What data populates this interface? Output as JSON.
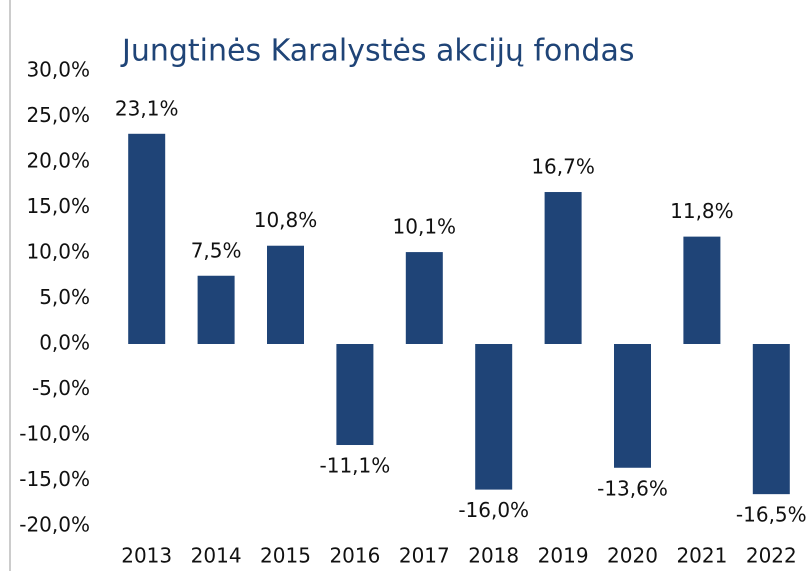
{
  "chart_data": {
    "type": "bar",
    "title": "Jungtinės Karalystės akcijų fondas",
    "categories": [
      "2013",
      "2014",
      "2015",
      "2016",
      "2017",
      "2018",
      "2019",
      "2020",
      "2021",
      "2022"
    ],
    "values": [
      23.1,
      7.5,
      10.8,
      -11.1,
      10.1,
      -16.0,
      16.7,
      -13.6,
      11.8,
      -16.5
    ],
    "value_labels": [
      "23,1%",
      "7,5%",
      "10,8%",
      "-11,1%",
      "10,1%",
      "-16,0%",
      "16,7%",
      "-13,6%",
      "11,8%",
      "-16,5%"
    ],
    "color": "#1f4477",
    "ylim": [
      -20,
      30
    ],
    "yticks": [
      {
        "value": -20,
        "label": "-20,0%"
      },
      {
        "value": -15,
        "label": "-15,0%"
      },
      {
        "value": -10,
        "label": "-10,0%"
      },
      {
        "value": -5,
        "label": "-5,0%"
      },
      {
        "value": 0,
        "label": "0,0%"
      },
      {
        "value": 5,
        "label": "5,0%"
      },
      {
        "value": 10,
        "label": "10,0%"
      },
      {
        "value": 15,
        "label": "15,0%"
      },
      {
        "value": 20,
        "label": "20,0%"
      },
      {
        "value": 25,
        "label": "25,0%"
      },
      {
        "value": 30,
        "label": "30,0%"
      }
    ],
    "grid": false
  }
}
